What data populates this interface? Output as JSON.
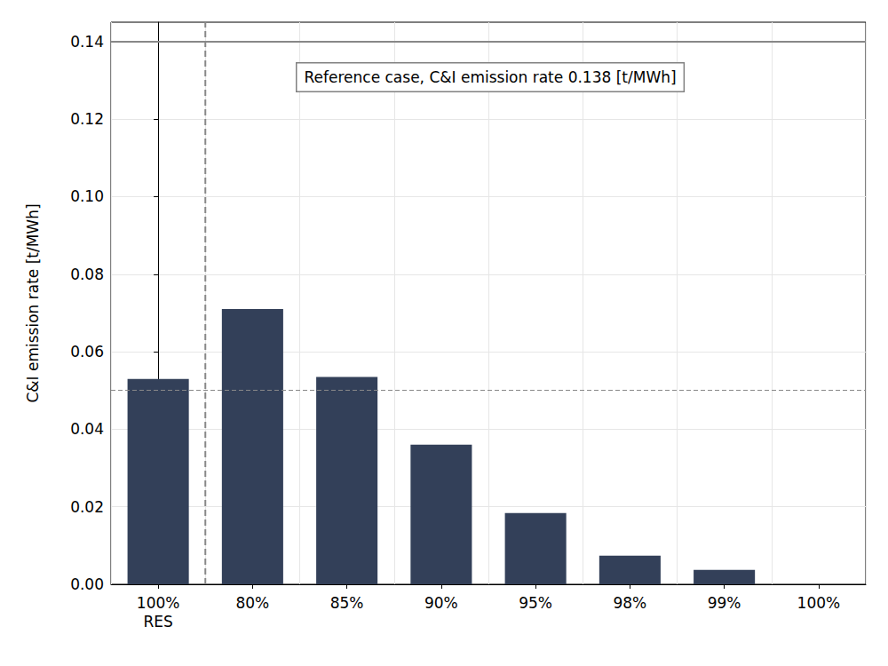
{
  "chart_data": {
    "type": "bar",
    "ylabel": "C&I emission rate [t/MWh]",
    "categories": [
      "100%\nRES",
      "80%",
      "85%",
      "90%",
      "95%",
      "98%",
      "99%",
      "100%"
    ],
    "values": [
      0.053,
      0.071,
      0.0535,
      0.036,
      0.0184,
      0.0074,
      0.0037,
      0.0
    ],
    "color": "#334059",
    "ylim": [
      0,
      0.145
    ],
    "yticks": [
      {
        "value": 0,
        "label": "0.00"
      },
      {
        "value": 0.02,
        "label": "0.02"
      },
      {
        "value": 0.04,
        "label": "0.04"
      },
      {
        "value": 0.06,
        "label": "0.06"
      },
      {
        "value": 0.08,
        "label": "0.08"
      },
      {
        "value": 0.1,
        "label": "0.10"
      },
      {
        "value": 0.12,
        "label": "0.12"
      },
      {
        "value": 0.14,
        "label": "0.14"
      }
    ],
    "grid": true,
    "reference_line": {
      "value": 0.138,
      "label": "Reference case, C&I emission rate 0.138 [t/MWh]"
    },
    "res_line": 0.053
  }
}
